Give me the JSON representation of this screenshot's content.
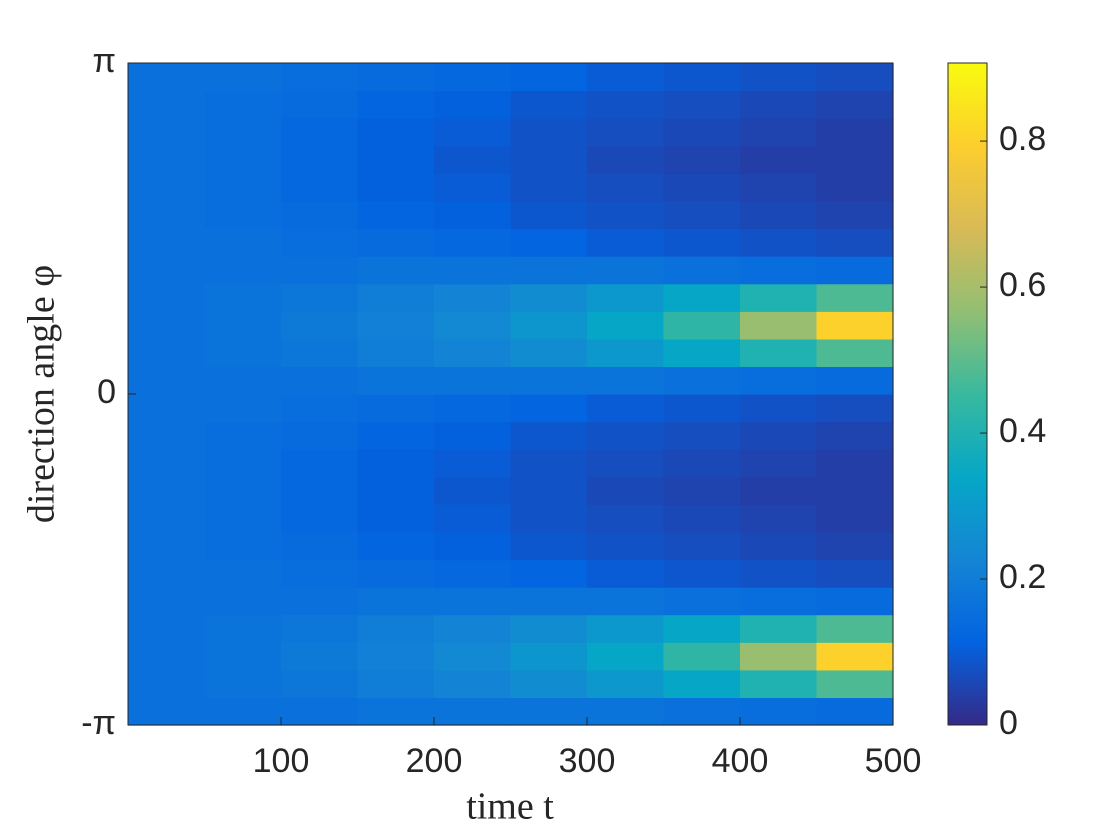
{
  "chart_data": {
    "type": "heatmap",
    "xlabel": "time t",
    "ylabel": "direction angle φ",
    "x": [
      25,
      75,
      125,
      175,
      225,
      275,
      325,
      375,
      425,
      475
    ],
    "y": [
      -3.011,
      -2.749,
      -2.487,
      -2.225,
      -1.963,
      -1.702,
      -1.44,
      -1.178,
      -0.916,
      -0.654,
      -0.393,
      -0.131,
      0.131,
      0.393,
      0.654,
      0.916,
      1.178,
      1.44,
      1.702,
      1.963,
      2.225,
      2.487,
      2.749,
      3.011
    ],
    "z": [
      [
        0.16,
        0.16,
        0.16,
        0.17,
        0.17,
        0.17,
        0.17,
        0.16,
        0.15,
        0.14
      ],
      [
        0.16,
        0.17,
        0.18,
        0.2,
        0.22,
        0.25,
        0.29,
        0.34,
        0.4,
        0.48
      ],
      [
        0.16,
        0.17,
        0.19,
        0.21,
        0.24,
        0.28,
        0.34,
        0.43,
        0.58,
        0.8
      ],
      [
        0.16,
        0.17,
        0.18,
        0.2,
        0.22,
        0.25,
        0.29,
        0.34,
        0.4,
        0.48
      ],
      [
        0.16,
        0.16,
        0.16,
        0.17,
        0.17,
        0.17,
        0.17,
        0.16,
        0.15,
        0.14
      ],
      [
        0.16,
        0.16,
        0.15,
        0.14,
        0.13,
        0.12,
        0.1,
        0.09,
        0.08,
        0.07
      ],
      [
        0.16,
        0.15,
        0.14,
        0.12,
        0.11,
        0.09,
        0.08,
        0.07,
        0.06,
        0.05
      ],
      [
        0.16,
        0.15,
        0.13,
        0.11,
        0.1,
        0.08,
        0.07,
        0.06,
        0.05,
        0.04
      ],
      [
        0.16,
        0.15,
        0.13,
        0.11,
        0.09,
        0.08,
        0.06,
        0.05,
        0.04,
        0.04
      ],
      [
        0.16,
        0.15,
        0.13,
        0.11,
        0.1,
        0.08,
        0.07,
        0.06,
        0.05,
        0.04
      ],
      [
        0.16,
        0.15,
        0.14,
        0.12,
        0.11,
        0.09,
        0.08,
        0.07,
        0.06,
        0.05
      ],
      [
        0.16,
        0.16,
        0.15,
        0.14,
        0.13,
        0.12,
        0.1,
        0.09,
        0.08,
        0.07
      ],
      [
        0.16,
        0.16,
        0.16,
        0.17,
        0.17,
        0.17,
        0.17,
        0.16,
        0.15,
        0.14
      ],
      [
        0.16,
        0.17,
        0.18,
        0.2,
        0.22,
        0.25,
        0.29,
        0.34,
        0.4,
        0.48
      ],
      [
        0.16,
        0.17,
        0.19,
        0.21,
        0.24,
        0.28,
        0.34,
        0.43,
        0.58,
        0.8
      ],
      [
        0.16,
        0.17,
        0.18,
        0.2,
        0.22,
        0.25,
        0.29,
        0.34,
        0.4,
        0.48
      ],
      [
        0.16,
        0.16,
        0.16,
        0.17,
        0.17,
        0.17,
        0.17,
        0.16,
        0.15,
        0.14
      ],
      [
        0.16,
        0.16,
        0.15,
        0.14,
        0.13,
        0.12,
        0.1,
        0.09,
        0.08,
        0.07
      ],
      [
        0.16,
        0.15,
        0.14,
        0.12,
        0.11,
        0.09,
        0.08,
        0.07,
        0.06,
        0.05
      ],
      [
        0.16,
        0.15,
        0.13,
        0.11,
        0.1,
        0.08,
        0.07,
        0.06,
        0.05,
        0.04
      ],
      [
        0.16,
        0.15,
        0.13,
        0.11,
        0.09,
        0.08,
        0.06,
        0.05,
        0.04,
        0.04
      ],
      [
        0.16,
        0.15,
        0.13,
        0.11,
        0.1,
        0.08,
        0.07,
        0.06,
        0.05,
        0.04
      ],
      [
        0.16,
        0.15,
        0.14,
        0.12,
        0.11,
        0.09,
        0.08,
        0.07,
        0.06,
        0.05
      ],
      [
        0.16,
        0.16,
        0.15,
        0.14,
        0.13,
        0.12,
        0.1,
        0.09,
        0.08,
        0.07
      ]
    ],
    "xlim": [
      0,
      500
    ],
    "xticks": [
      100,
      200,
      300,
      400,
      500
    ],
    "ylim": [
      -3.14159,
      3.14159
    ],
    "yticks": [
      {
        "value": -3.14159,
        "label": "-π"
      },
      0,
      {
        "value": 3.14159,
        "label": "π"
      }
    ],
    "colormap": "parula",
    "clim": [
      0,
      0.907
    ],
    "cticks": [
      0,
      0.2,
      0.4,
      0.6,
      0.8
    ]
  }
}
